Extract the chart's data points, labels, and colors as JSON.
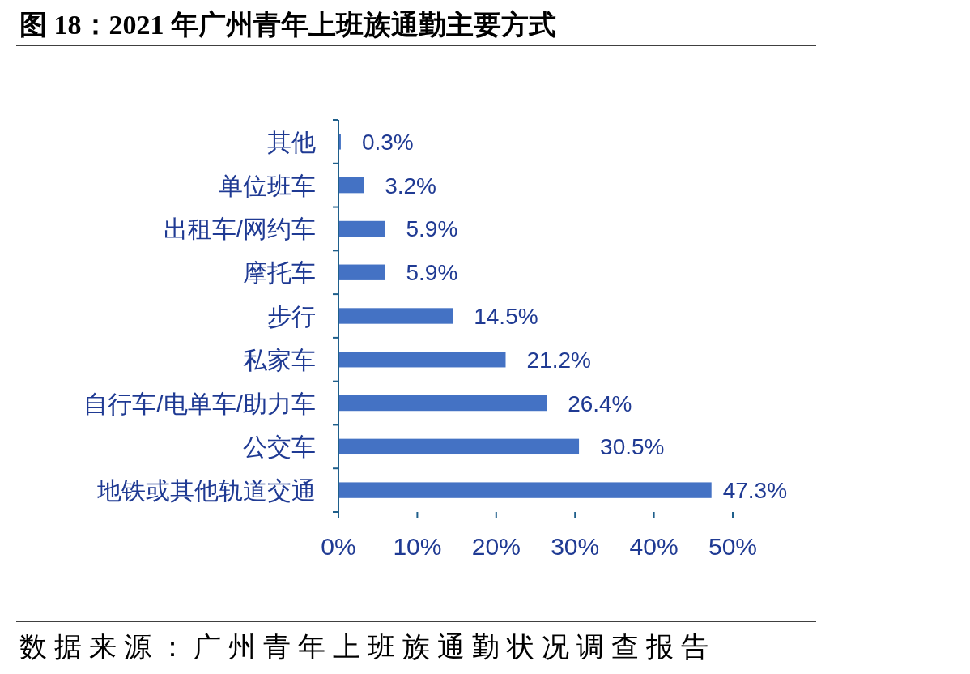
{
  "chart_data": {
    "type": "bar",
    "orientation": "horizontal",
    "title": "图 18：2021 年广州青年上班族通勤主要方式",
    "categories": [
      "其他",
      "单位班车",
      "出租车/网约车",
      "摩托车",
      "步行",
      "私家车",
      "自行车/电单车/助力车",
      "公交车",
      "地铁或其他轨道交通"
    ],
    "values": [
      0.3,
      3.2,
      5.9,
      5.9,
      14.5,
      21.2,
      26.4,
      30.5,
      47.3
    ],
    "value_labels": [
      "0.3%",
      "3.2%",
      "5.9%",
      "5.9%",
      "14.5%",
      "21.2%",
      "26.4%",
      "30.5%",
      "47.3%"
    ],
    "color": "#4472c4",
    "xlim": [
      0,
      50
    ],
    "xticks": [
      {
        "value": 0,
        "label": "0%"
      },
      {
        "value": 10,
        "label": "10%"
      },
      {
        "value": 20,
        "label": "20%"
      },
      {
        "value": 30,
        "label": "30%"
      },
      {
        "value": 40,
        "label": "40%"
      },
      {
        "value": 50,
        "label": "50%"
      }
    ],
    "annotations": [
      "数据来源：广州青年上班族通勤状况调查报告"
    ]
  }
}
